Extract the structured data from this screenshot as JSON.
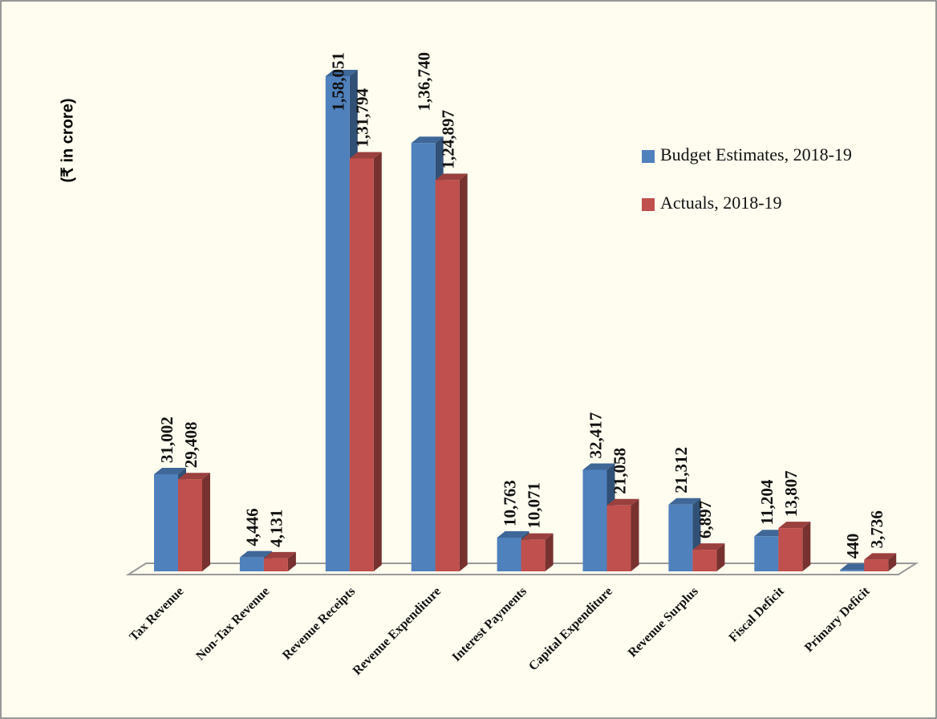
{
  "chart_data": {
    "type": "bar",
    "y_label": "(₹ in crore)",
    "categories": [
      "Tax Revenue",
      "Non-Tax Revenue",
      "Revenue Receipts",
      "Revenue Expenditure",
      "Interest Payments",
      "Capital Expenditure",
      "Revenue Surplus",
      "Fiscal Deficit",
      "Primary Deficit"
    ],
    "series": [
      {
        "name": "Budget Estimates, 2018-19",
        "color": "#4f81bd",
        "values": [
          31002,
          4446,
          158051,
          136740,
          10763,
          32417,
          21312,
          11204,
          440
        ],
        "value_labels": [
          "31,002",
          "4,446",
          "1,58,051",
          "1,36,740",
          "10,763",
          "32,417",
          "21,312",
          "11,204",
          "440"
        ]
      },
      {
        "name": "Actuals, 2018-19",
        "color": "#c0504d",
        "values": [
          29408,
          4131,
          131794,
          124897,
          10071,
          21058,
          6897,
          13807,
          3736
        ],
        "value_labels": [
          "29,408",
          "4,131",
          "1,31,794",
          "1,24,897",
          "10,071",
          "21,058",
          "6,897",
          "13,807",
          "3,736"
        ]
      }
    ],
    "legend": "right"
  }
}
